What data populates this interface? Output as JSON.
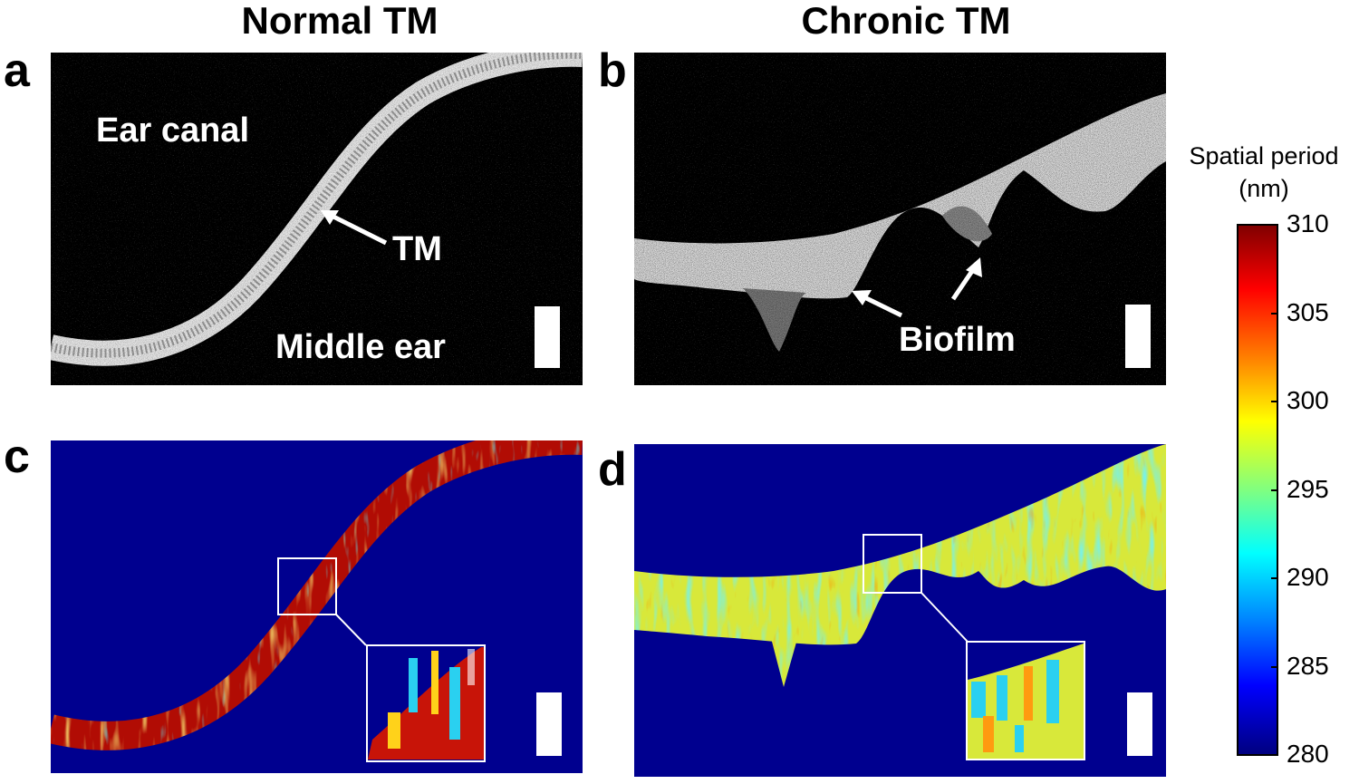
{
  "columns": {
    "left_title": "Normal TM",
    "right_title": "Chronic TM"
  },
  "panels": {
    "a": {
      "letter": "a",
      "label_ear_canal": "Ear canal",
      "label_tm": "TM",
      "label_middle_ear": "Middle ear"
    },
    "b": {
      "letter": "b",
      "label_biofilm": "Biofilm"
    },
    "c": {
      "letter": "c"
    },
    "d": {
      "letter": "d"
    }
  },
  "colorbar": {
    "title_line1": "Spatial period",
    "title_line2": "(nm)",
    "ticks": [
      "310",
      "305",
      "300",
      "295",
      "290",
      "285",
      "280"
    ],
    "min": 280,
    "max": 310,
    "colormap": "jet"
  },
  "colors": {
    "oct_background": "#000000",
    "map_background": "#00008f",
    "inset_border": "#ffffff"
  }
}
